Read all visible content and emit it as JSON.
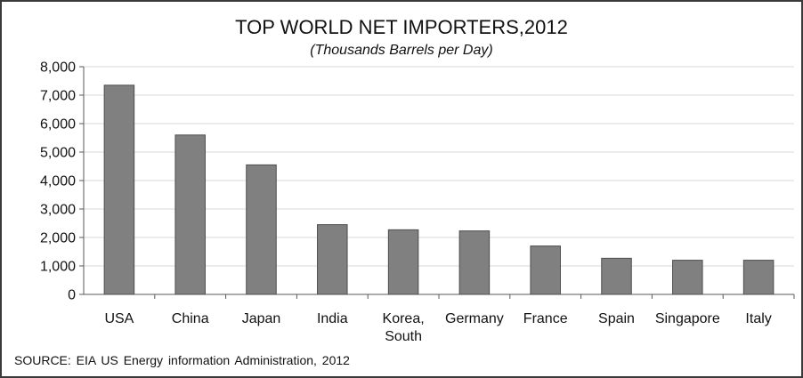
{
  "chart_data": {
    "type": "bar",
    "title": "TOP WORLD NET IMPORTERS,2012",
    "subtitle": "(Thousands Barrels per Day)",
    "categories": [
      "USA",
      "China",
      "Japan",
      "India",
      "Korea, South",
      "Germany",
      "France",
      "Spain",
      "Singapore",
      "Italy"
    ],
    "category_lines": [
      [
        "USA"
      ],
      [
        "China"
      ],
      [
        "Japan"
      ],
      [
        "India"
      ],
      [
        "Korea,",
        "South"
      ],
      [
        "Germany"
      ],
      [
        "France"
      ],
      [
        "Spain"
      ],
      [
        "Singapore"
      ],
      [
        "Italy"
      ]
    ],
    "values": [
      7350,
      5600,
      4550,
      2450,
      2270,
      2230,
      1700,
      1270,
      1200,
      1200
    ],
    "ylim": [
      0,
      8000
    ],
    "yticks": [
      0,
      1000,
      2000,
      3000,
      4000,
      5000,
      6000,
      7000,
      8000
    ],
    "ytick_labels": [
      "0",
      "1,000",
      "2,000",
      "3,000",
      "4,000",
      "5,000",
      "6,000",
      "7,000",
      "8,000"
    ],
    "xlabel": "",
    "ylabel": "",
    "grid": true,
    "legend": "none",
    "bar_color": "#808080",
    "bar_edge_color": "#4d4d4d",
    "grid_color": "#d9d9d9",
    "source": "SOURCE:  EIA US Energy information Administration,  2012"
  }
}
